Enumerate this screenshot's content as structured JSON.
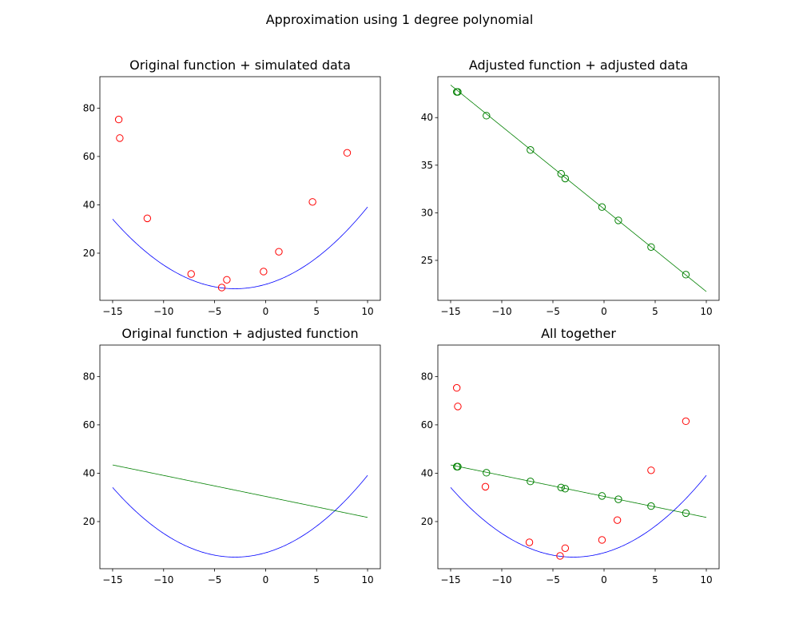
{
  "figure": {
    "suptitle": "Approximation using 1 degree polynomial"
  },
  "colors": {
    "original_function": "#0000ff",
    "simulated_data": "#ff0000",
    "adjusted_function": "#008000",
    "adjusted_data": "#008000",
    "axes": "#000000",
    "background": "#ffffff"
  },
  "chart_data": [
    {
      "type": "line+scatter",
      "title": "Original function + simulated data",
      "xlim": [
        -16.25,
        11.25
      ],
      "ylim": [
        0.5,
        93.0
      ],
      "xticks": [
        -15,
        -10,
        -5,
        0,
        5,
        10
      ],
      "yticks": [
        20,
        40,
        60,
        80
      ],
      "grid": false,
      "lines": [
        {
          "kind": "quadratic",
          "a": 0.2,
          "h": -3.0,
          "k": 5.3,
          "x_range": [
            -15,
            10
          ],
          "color": "#0000ff"
        }
      ],
      "scatter": [
        {
          "color": "#ff0000",
          "points": [
            [
              -14.4,
              75.3
            ],
            [
              -14.3,
              67.6
            ],
            [
              -11.6,
              34.4
            ],
            [
              -7.3,
              11.4
            ],
            [
              -4.3,
              5.8
            ],
            [
              -3.8,
              9.0
            ],
            [
              -0.2,
              12.4
            ],
            [
              1.3,
              20.6
            ],
            [
              4.6,
              41.2
            ],
            [
              8.0,
              61.5
            ]
          ]
        }
      ]
    },
    {
      "type": "line+scatter",
      "title": "Adjusted function + adjusted data",
      "xlim": [
        -16.25,
        11.25
      ],
      "ylim": [
        20.8,
        44.3
      ],
      "xticks": [
        -15,
        -10,
        -5,
        0,
        5,
        10
      ],
      "yticks": [
        25,
        30,
        35,
        40
      ],
      "grid": false,
      "lines": [
        {
          "kind": "linear",
          "slope": -0.868,
          "intercept": 30.4,
          "x_range": [
            -15,
            10
          ],
          "color": "#008000"
        }
      ],
      "scatter": [
        {
          "color": "#008000",
          "points": [
            [
              -14.4,
              42.7
            ],
            [
              -14.3,
              42.7
            ],
            [
              -11.5,
              40.2
            ],
            [
              -7.2,
              36.6
            ],
            [
              -4.2,
              34.1
            ],
            [
              -3.8,
              33.6
            ],
            [
              -0.2,
              30.6
            ],
            [
              1.4,
              29.2
            ],
            [
              4.6,
              26.4
            ],
            [
              8.0,
              23.5
            ]
          ]
        }
      ]
    },
    {
      "type": "line",
      "title": "Original function + adjusted function",
      "xlim": [
        -16.25,
        11.25
      ],
      "ylim": [
        0.5,
        93.0
      ],
      "xticks": [
        -15,
        -10,
        -5,
        0,
        5,
        10
      ],
      "yticks": [
        20,
        40,
        60,
        80
      ],
      "grid": false,
      "lines": [
        {
          "kind": "quadratic",
          "a": 0.2,
          "h": -3.0,
          "k": 5.3,
          "x_range": [
            -15,
            10
          ],
          "color": "#0000ff"
        },
        {
          "kind": "linear",
          "slope": -0.868,
          "intercept": 30.4,
          "x_range": [
            -15,
            10
          ],
          "color": "#008000"
        }
      ],
      "scatter": []
    },
    {
      "type": "line+scatter",
      "title": "All together",
      "xlim": [
        -16.25,
        11.25
      ],
      "ylim": [
        0.5,
        93.0
      ],
      "xticks": [
        -15,
        -10,
        -5,
        0,
        5,
        10
      ],
      "yticks": [
        20,
        40,
        60,
        80
      ],
      "grid": false,
      "lines": [
        {
          "kind": "quadratic",
          "a": 0.2,
          "h": -3.0,
          "k": 5.3,
          "x_range": [
            -15,
            10
          ],
          "color": "#0000ff"
        },
        {
          "kind": "linear",
          "slope": -0.868,
          "intercept": 30.4,
          "x_range": [
            -15,
            10
          ],
          "color": "#008000"
        }
      ],
      "scatter": [
        {
          "color": "#ff0000",
          "points": [
            [
              -14.4,
              75.3
            ],
            [
              -14.3,
              67.6
            ],
            [
              -11.6,
              34.4
            ],
            [
              -7.3,
              11.4
            ],
            [
              -4.3,
              5.8
            ],
            [
              -3.8,
              9.0
            ],
            [
              -0.2,
              12.4
            ],
            [
              1.3,
              20.6
            ],
            [
              4.6,
              41.2
            ],
            [
              8.0,
              61.5
            ]
          ]
        },
        {
          "color": "#008000",
          "points": [
            [
              -14.4,
              42.7
            ],
            [
              -14.3,
              42.7
            ],
            [
              -11.5,
              40.2
            ],
            [
              -7.2,
              36.6
            ],
            [
              -4.2,
              34.1
            ],
            [
              -3.8,
              33.6
            ],
            [
              -0.2,
              30.6
            ],
            [
              1.4,
              29.2
            ],
            [
              4.6,
              26.4
            ],
            [
              8.0,
              23.5
            ]
          ]
        }
      ]
    }
  ]
}
